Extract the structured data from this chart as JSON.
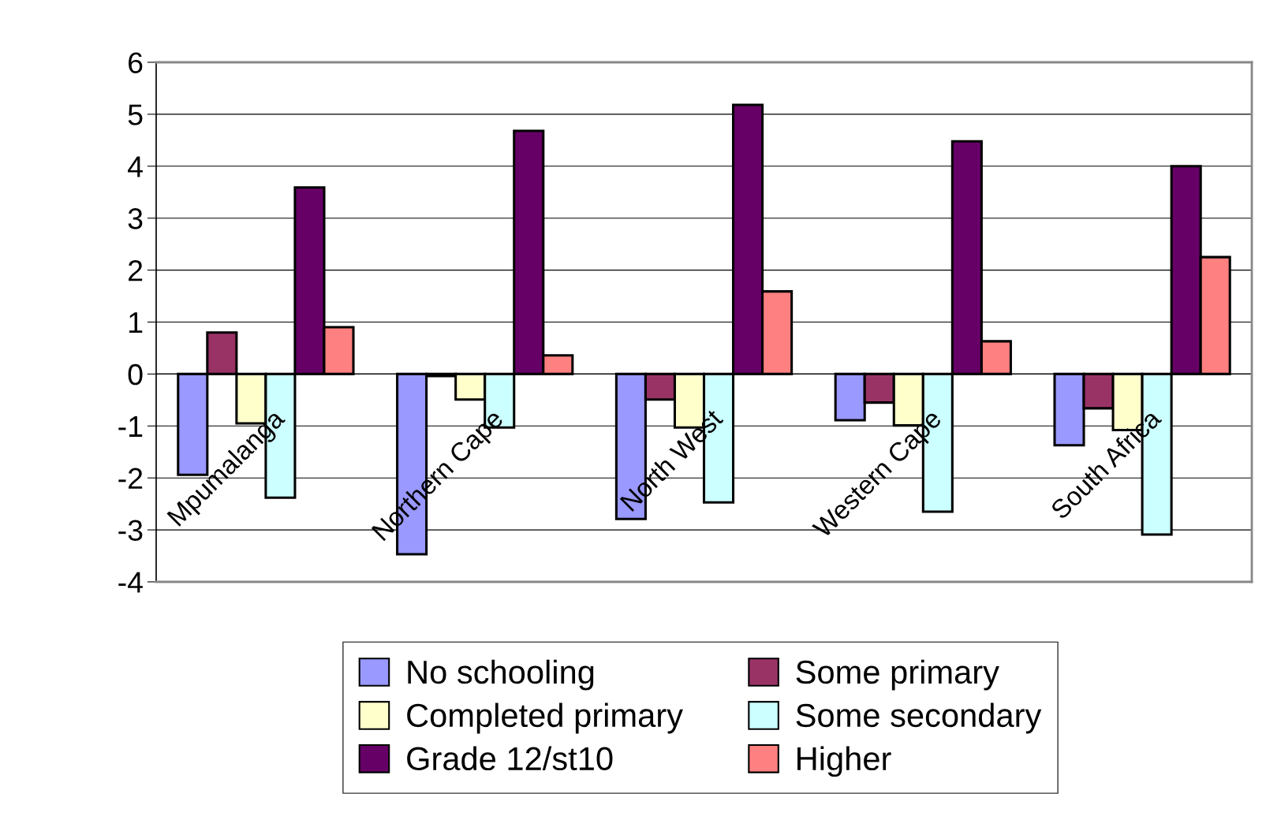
{
  "chart_data": {
    "type": "bar",
    "categories": [
      "Mpumalanga",
      "Northern Cape",
      "North West",
      "Western Cape",
      "South Africa"
    ],
    "series": [
      {
        "name": "No schooling",
        "color": "#9999ff",
        "values": [
          -1.94,
          -3.47,
          -2.79,
          -0.89,
          -1.37
        ]
      },
      {
        "name": "Some primary",
        "color": "#993366",
        "values": [
          0.8,
          -0.04,
          -0.49,
          -0.55,
          -0.66
        ]
      },
      {
        "name": "Completed primary",
        "color": "#ffffcc",
        "values": [
          -0.95,
          -0.49,
          -1.03,
          -0.99,
          -1.08
        ]
      },
      {
        "name": "Some secondary",
        "color": "#ccffff",
        "values": [
          -2.38,
          -1.03,
          -2.47,
          -2.65,
          -3.09
        ]
      },
      {
        "name": "Grade 12/st10",
        "color": "#660066",
        "values": [
          3.59,
          4.68,
          5.18,
          4.48,
          4.0
        ]
      },
      {
        "name": "Higher",
        "color": "#ff8080",
        "values": [
          0.9,
          0.36,
          1.59,
          0.63,
          2.25
        ]
      }
    ],
    "ylim": [
      -4,
      6
    ],
    "yticks": [
      -4,
      -3,
      -2,
      -1,
      0,
      1,
      2,
      3,
      4,
      5,
      6
    ],
    "grid": "y",
    "legend": "bottom"
  }
}
